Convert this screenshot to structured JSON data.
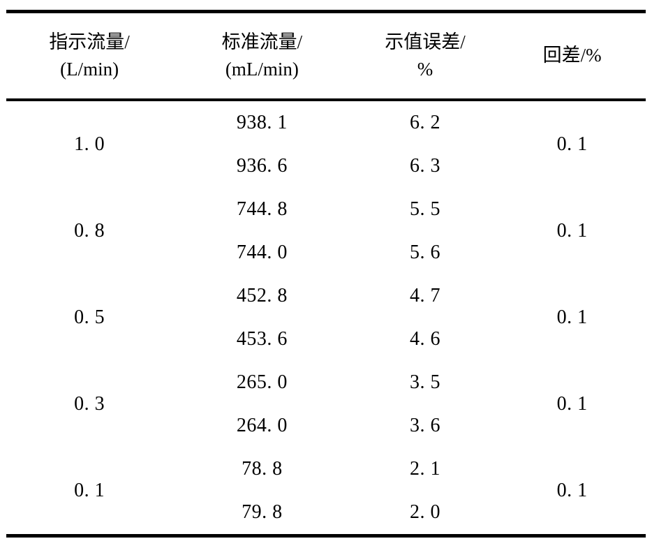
{
  "table": {
    "columns": [
      {
        "line1": "指示流量/",
        "line2": "(L/min)"
      },
      {
        "line1": "标准流量/",
        "line2": "(mL/min)"
      },
      {
        "line1": "示值误差/",
        "line2": "%"
      },
      {
        "line1": "回差/%",
        "line2": ""
      }
    ],
    "groups": [
      {
        "indicated": "1. 0",
        "standard_1": "938. 1",
        "error_1": "6. 2",
        "standard_2": "936. 6",
        "error_2": "6. 3",
        "hysteresis": "0. 1"
      },
      {
        "indicated": "0. 8",
        "standard_1": "744. 8",
        "error_1": "5. 5",
        "standard_2": "744. 0",
        "error_2": "5. 6",
        "hysteresis": "0. 1"
      },
      {
        "indicated": "0. 5",
        "standard_1": "452. 8",
        "error_1": "4. 7",
        "standard_2": "453. 6",
        "error_2": "4. 6",
        "hysteresis": "0. 1"
      },
      {
        "indicated": "0. 3",
        "standard_1": "265. 0",
        "error_1": "3. 5",
        "standard_2": "264. 0",
        "error_2": "3. 6",
        "hysteresis": "0. 1"
      },
      {
        "indicated": "0. 1",
        "standard_1": "78. 8",
        "error_1": "2. 1",
        "standard_2": "79. 8",
        "error_2": "2. 0",
        "hysteresis": "0. 1"
      }
    ]
  },
  "colors": {
    "rule": "#000000",
    "background": "#ffffff",
    "text": "#000000"
  }
}
